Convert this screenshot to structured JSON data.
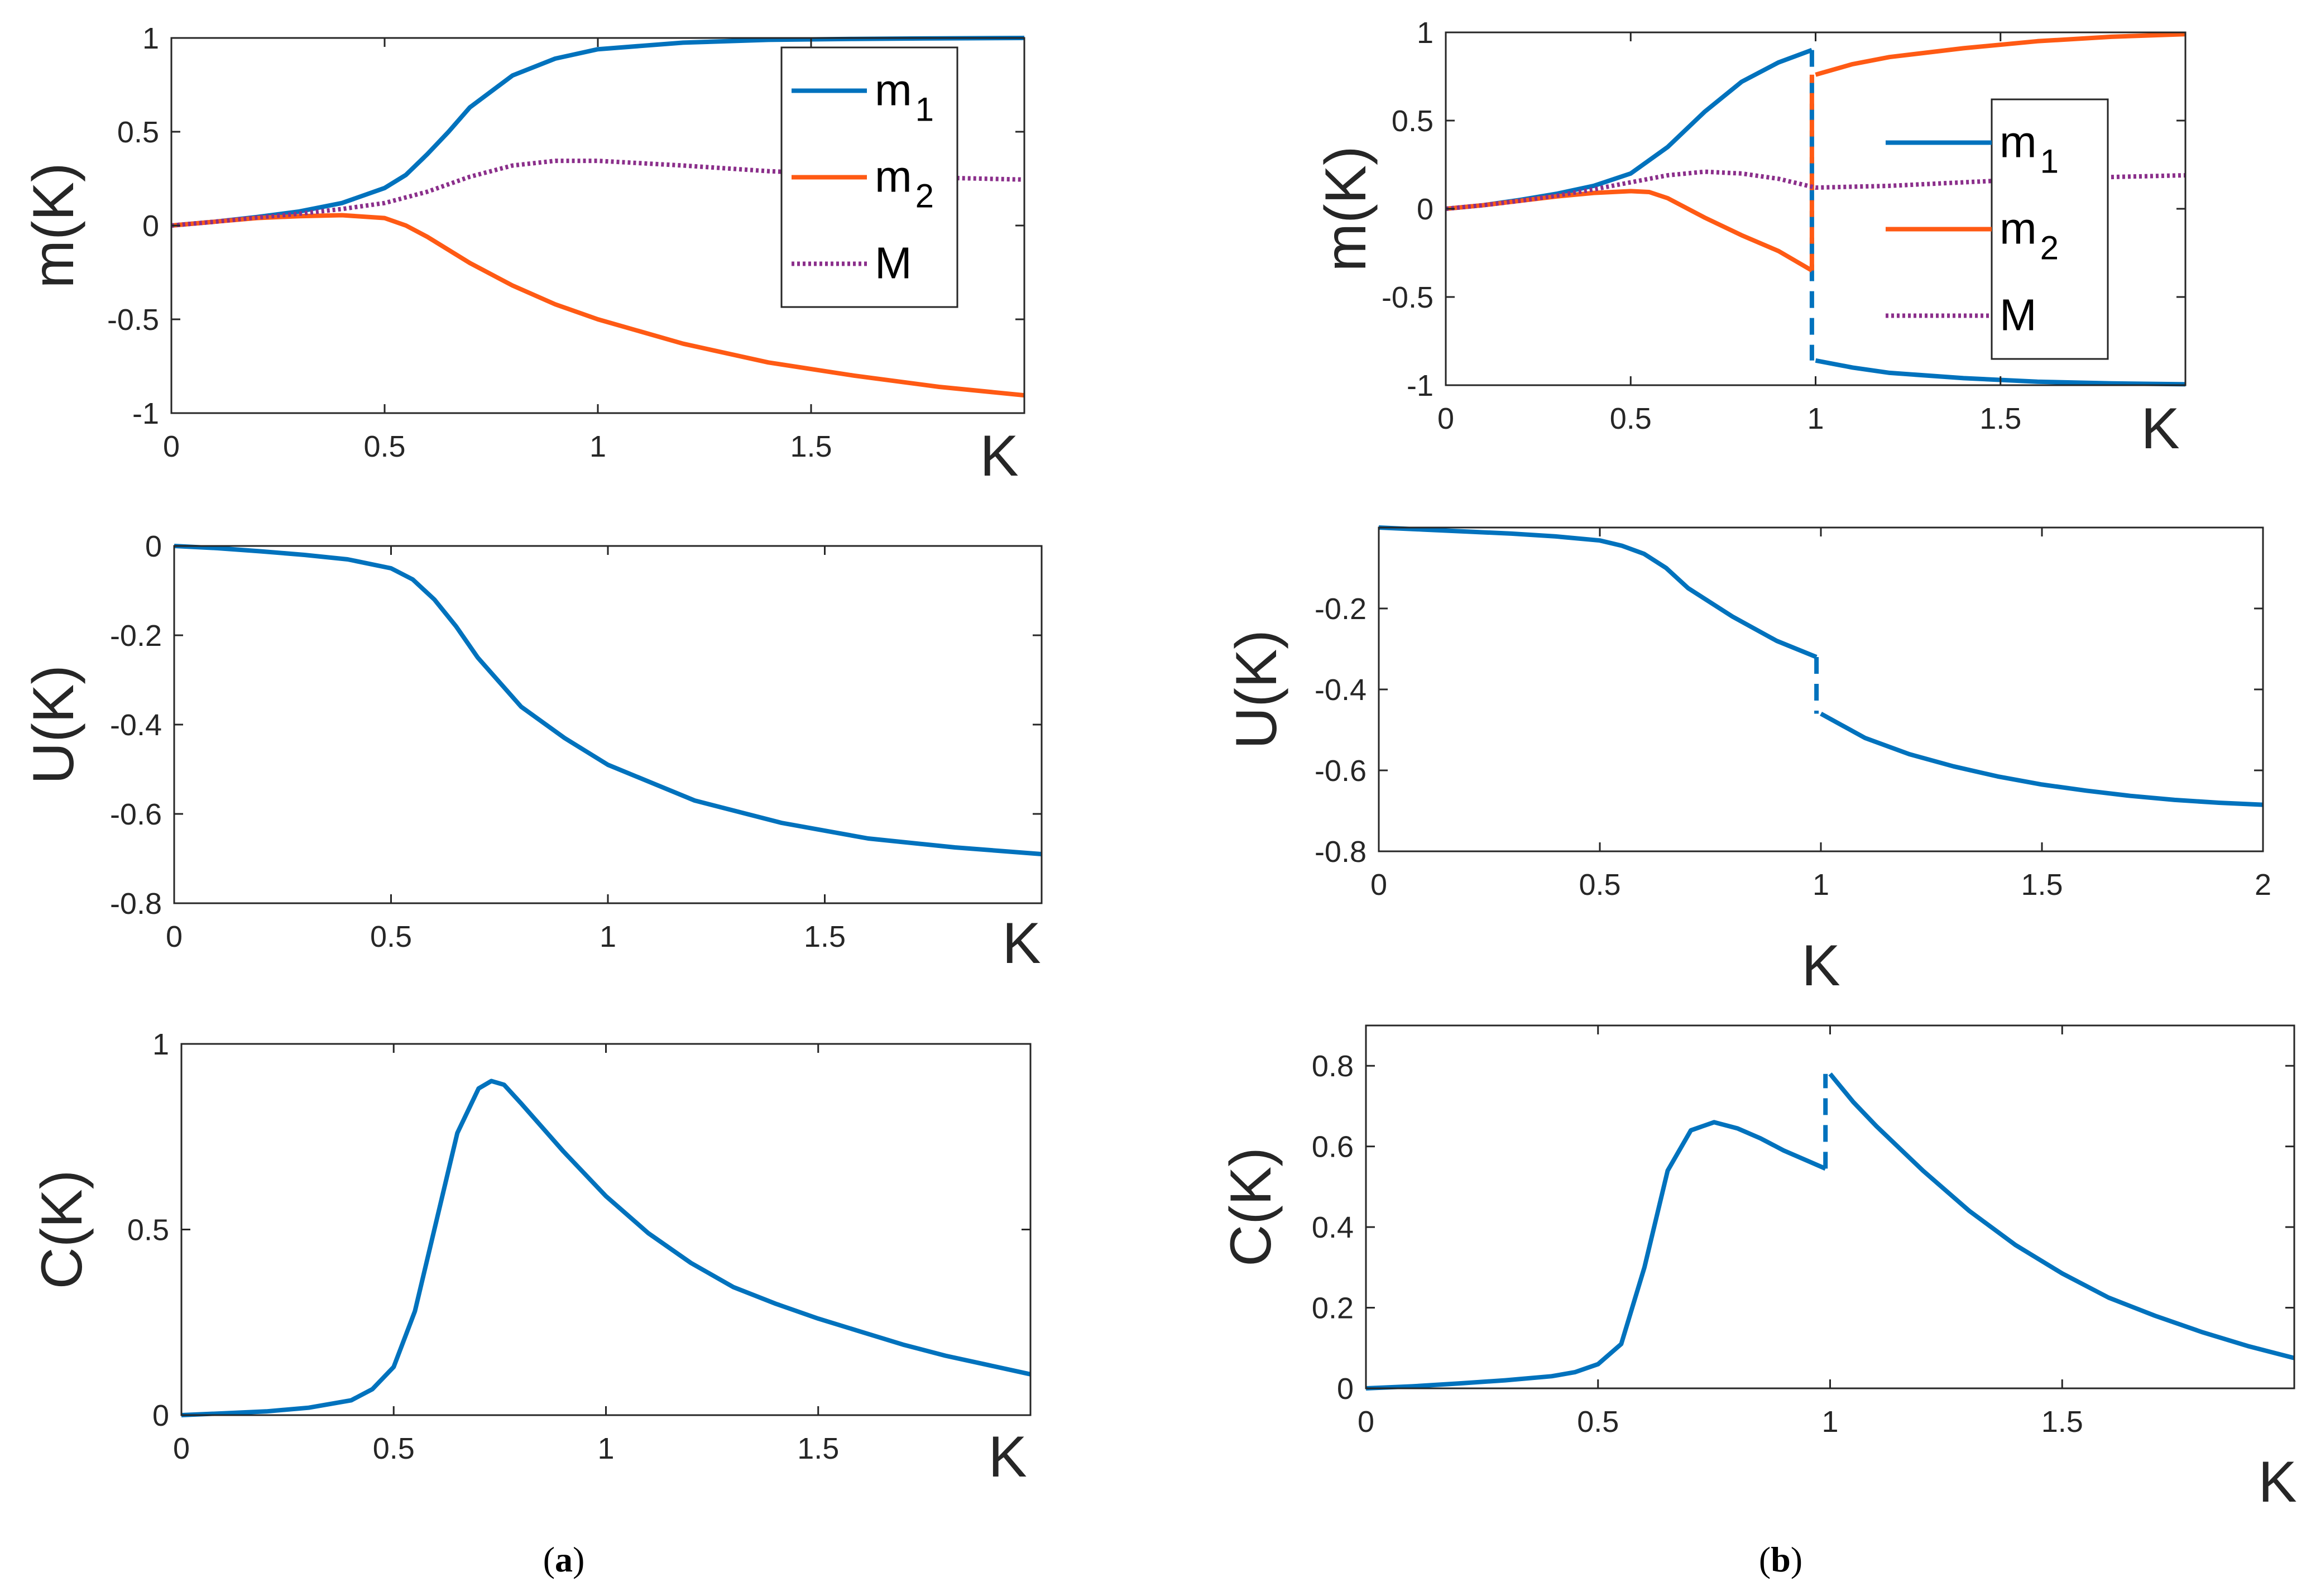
{
  "colors": {
    "blue": "#0072BD",
    "orange": "#FF5A14",
    "purple": "#8B2F8B",
    "axis": "#262626"
  },
  "captions": {
    "a_open": "(",
    "a_letter": "a",
    "a_close": ")",
    "b_open": "(",
    "b_letter": "b",
    "b_close": ")"
  },
  "chart_data": [
    {
      "id": "a_m",
      "type": "line",
      "panel": "(a)",
      "title": "",
      "xlabel": "K",
      "ylabel": "m(K)",
      "xlim": [
        0,
        2
      ],
      "ylim": [
        -1,
        1
      ],
      "xticks": [
        "0",
        "0.5",
        "1",
        "1.5"
      ],
      "xtick_values": [
        0,
        0.5,
        1,
        1.5
      ],
      "yticks": [
        "1",
        "0.5",
        "0",
        "-0.5",
        "-1"
      ],
      "ytick_values": [
        1,
        0.5,
        0,
        -0.5,
        -1
      ],
      "legend": {
        "position": "top-right",
        "entries": [
          {
            "base": "m",
            "sub": "1",
            "series": 0
          },
          {
            "base": "m",
            "sub": "2",
            "series": 1
          },
          {
            "base": "M",
            "sub": "",
            "series": 2
          }
        ]
      },
      "series": [
        {
          "name": "m1",
          "color": "blue",
          "style": "solid",
          "x": [
            0,
            0.1,
            0.2,
            0.3,
            0.4,
            0.5,
            0.55,
            0.6,
            0.65,
            0.7,
            0.8,
            0.9,
            1.0,
            1.2,
            1.4,
            1.6,
            1.8,
            2.0
          ],
          "y": [
            0,
            0.02,
            0.045,
            0.075,
            0.12,
            0.2,
            0.27,
            0.38,
            0.5,
            0.63,
            0.8,
            0.89,
            0.94,
            0.975,
            0.99,
            0.995,
            0.998,
            1.0
          ]
        },
        {
          "name": "m2",
          "color": "orange",
          "style": "solid",
          "x": [
            0,
            0.1,
            0.2,
            0.3,
            0.4,
            0.5,
            0.55,
            0.6,
            0.7,
            0.8,
            0.9,
            1.0,
            1.2,
            1.4,
            1.6,
            1.8,
            2.0
          ],
          "y": [
            0,
            0.02,
            0.04,
            0.05,
            0.055,
            0.04,
            0.0,
            -0.06,
            -0.2,
            -0.32,
            -0.42,
            -0.5,
            -0.63,
            -0.73,
            -0.8,
            -0.86,
            -0.905
          ]
        },
        {
          "name": "M",
          "color": "purple",
          "style": "dotted",
          "x": [
            0,
            0.1,
            0.2,
            0.3,
            0.4,
            0.5,
            0.6,
            0.7,
            0.8,
            0.9,
            1.0,
            1.2,
            1.4,
            1.6,
            1.8,
            2.0
          ],
          "y": [
            0,
            0.02,
            0.043,
            0.063,
            0.088,
            0.12,
            0.18,
            0.26,
            0.32,
            0.345,
            0.345,
            0.32,
            0.29,
            0.27,
            0.255,
            0.245
          ]
        }
      ]
    },
    {
      "id": "b_m",
      "type": "line",
      "panel": "(b)",
      "title": "",
      "xlabel": "K",
      "ylabel": "m(K)",
      "xlim": [
        0,
        2
      ],
      "ylim": [
        -1,
        1
      ],
      "xticks": [
        "0",
        "0.5",
        "1",
        "1.5"
      ],
      "xtick_values": [
        0,
        0.5,
        1,
        1.5
      ],
      "yticks": [
        "1",
        "0.5",
        "0",
        "-0.5",
        "-1"
      ],
      "ytick_values": [
        1,
        0.5,
        0,
        -0.5,
        -1
      ],
      "legend": {
        "position": "right",
        "entries": [
          {
            "base": "m",
            "sub": "1",
            "series": 0
          },
          {
            "base": "m",
            "sub": "2",
            "series": 1
          },
          {
            "base": "M",
            "sub": "",
            "series": 2
          }
        ]
      },
      "series": [
        {
          "name": "m1",
          "color": "blue",
          "style": "solid",
          "x": [
            0,
            0.1,
            0.2,
            0.3,
            0.4,
            0.5,
            0.6,
            0.7,
            0.8,
            0.9,
            0.99
          ],
          "y": [
            0,
            0.02,
            0.05,
            0.085,
            0.13,
            0.2,
            0.35,
            0.55,
            0.72,
            0.83,
            0.9
          ]
        },
        {
          "name": "m1",
          "color": "blue",
          "style": "solid",
          "x": [
            1.0,
            1.1,
            1.2,
            1.4,
            1.6,
            1.8,
            2.0
          ],
          "y": [
            -0.86,
            -0.9,
            -0.93,
            -0.96,
            -0.98,
            -0.99,
            -0.995
          ]
        },
        {
          "name": "m1_jump",
          "color": "blue",
          "style": "dashed",
          "x": [
            0.99,
            0.99
          ],
          "y": [
            0.9,
            -0.86
          ]
        },
        {
          "name": "m2",
          "color": "orange",
          "style": "solid",
          "x": [
            0,
            0.1,
            0.2,
            0.3,
            0.4,
            0.5,
            0.55,
            0.6,
            0.7,
            0.8,
            0.9,
            0.99
          ],
          "y": [
            0,
            0.02,
            0.045,
            0.07,
            0.09,
            0.1,
            0.095,
            0.06,
            -0.05,
            -0.15,
            -0.24,
            -0.35
          ]
        },
        {
          "name": "m2",
          "color": "orange",
          "style": "solid",
          "x": [
            1.0,
            1.1,
            1.2,
            1.4,
            1.6,
            1.8,
            2.0
          ],
          "y": [
            0.76,
            0.82,
            0.86,
            0.91,
            0.95,
            0.975,
            0.99
          ]
        },
        {
          "name": "m2_jump",
          "color": "orange",
          "style": "dashed",
          "x": [
            0.99,
            0.99
          ],
          "y": [
            -0.35,
            0.76
          ]
        },
        {
          "name": "M",
          "color": "purple",
          "style": "dotted",
          "x": [
            0,
            0.1,
            0.2,
            0.3,
            0.4,
            0.5,
            0.6,
            0.7,
            0.8,
            0.9,
            1.0,
            1.2,
            1.4,
            1.6,
            1.8,
            2.0
          ],
          "y": [
            0,
            0.02,
            0.045,
            0.075,
            0.11,
            0.15,
            0.19,
            0.21,
            0.2,
            0.17,
            0.12,
            0.13,
            0.15,
            0.17,
            0.18,
            0.19
          ]
        }
      ]
    },
    {
      "id": "a_U",
      "type": "line",
      "panel": "(a)",
      "title": "",
      "xlabel": "K",
      "ylabel": "U(K)",
      "xlim": [
        0,
        2
      ],
      "ylim": [
        -0.8,
        0
      ],
      "xticks": [
        "0",
        "0.5",
        "1",
        "1.5"
      ],
      "xtick_values": [
        0,
        0.5,
        1,
        1.5
      ],
      "yticks": [
        "0",
        "-0.2",
        "-0.4",
        "-0.6",
        "-0.8"
      ],
      "ytick_values": [
        0,
        -0.2,
        -0.4,
        -0.6,
        -0.8
      ],
      "series": [
        {
          "name": "U",
          "color": "blue",
          "style": "solid",
          "x": [
            0,
            0.1,
            0.2,
            0.3,
            0.4,
            0.5,
            0.55,
            0.6,
            0.65,
            0.7,
            0.8,
            0.9,
            1.0,
            1.2,
            1.4,
            1.6,
            1.8,
            2.0
          ],
          "y": [
            0,
            -0.005,
            -0.012,
            -0.02,
            -0.03,
            -0.05,
            -0.075,
            -0.12,
            -0.18,
            -0.25,
            -0.36,
            -0.43,
            -0.49,
            -0.57,
            -0.62,
            -0.655,
            -0.675,
            -0.69
          ]
        }
      ]
    },
    {
      "id": "b_U",
      "type": "line",
      "panel": "(b)",
      "title": "",
      "xlabel": "K",
      "ylabel": "U(K)",
      "xlim": [
        0,
        2
      ],
      "ylim": [
        -0.8,
        0
      ],
      "xticks": [
        "0",
        "0.5",
        "1",
        "1.5",
        "2"
      ],
      "xtick_values": [
        0,
        0.5,
        1,
        1.5,
        2
      ],
      "yticks": [
        "-0.2",
        "-0.4",
        "-0.6",
        "-0.8"
      ],
      "ytick_values": [
        -0.2,
        -0.4,
        -0.6,
        -0.8
      ],
      "series": [
        {
          "name": "U",
          "color": "blue",
          "style": "solid",
          "x": [
            0,
            0.1,
            0.2,
            0.3,
            0.4,
            0.5,
            0.55,
            0.6,
            0.65,
            0.7,
            0.8,
            0.9,
            0.99
          ],
          "y": [
            0,
            -0.005,
            -0.01,
            -0.015,
            -0.022,
            -0.032,
            -0.045,
            -0.065,
            -0.1,
            -0.15,
            -0.22,
            -0.28,
            -0.32
          ]
        },
        {
          "name": "U",
          "color": "blue",
          "style": "solid",
          "x": [
            1.0,
            1.1,
            1.2,
            1.3,
            1.4,
            1.5,
            1.6,
            1.7,
            1.8,
            1.9,
            2.0
          ],
          "y": [
            -0.46,
            -0.52,
            -0.56,
            -0.59,
            -0.615,
            -0.635,
            -0.65,
            -0.663,
            -0.673,
            -0.68,
            -0.685
          ]
        },
        {
          "name": "U_jump",
          "color": "blue",
          "style": "dashed",
          "x": [
            0.99,
            0.99
          ],
          "y": [
            -0.32,
            -0.46
          ]
        }
      ]
    },
    {
      "id": "a_C",
      "type": "line",
      "panel": "(a)",
      "title": "",
      "xlabel": "K",
      "ylabel": "C(K)",
      "xlim": [
        0,
        2
      ],
      "ylim": [
        0,
        1
      ],
      "xticks": [
        "0",
        "0.5",
        "1",
        "1.5"
      ],
      "xtick_values": [
        0,
        0.5,
        1,
        1.5
      ],
      "yticks": [
        "1",
        "0.5",
        "0"
      ],
      "ytick_values": [
        1,
        0.5,
        0
      ],
      "series": [
        {
          "name": "C",
          "color": "blue",
          "style": "solid",
          "x": [
            0,
            0.1,
            0.2,
            0.3,
            0.4,
            0.45,
            0.5,
            0.55,
            0.6,
            0.65,
            0.7,
            0.73,
            0.76,
            0.8,
            0.9,
            1.0,
            1.1,
            1.2,
            1.3,
            1.4,
            1.5,
            1.6,
            1.7,
            1.8,
            1.9,
            2.0
          ],
          "y": [
            0,
            0.005,
            0.01,
            0.02,
            0.04,
            0.07,
            0.13,
            0.28,
            0.52,
            0.76,
            0.88,
            0.9,
            0.89,
            0.84,
            0.71,
            0.59,
            0.49,
            0.41,
            0.345,
            0.3,
            0.26,
            0.225,
            0.19,
            0.16,
            0.135,
            0.11
          ]
        }
      ]
    },
    {
      "id": "b_C",
      "type": "line",
      "panel": "(b)",
      "title": "",
      "xlabel": "K",
      "ylabel": "C(K)",
      "xlim": [
        0,
        2
      ],
      "ylim": [
        0,
        0.9
      ],
      "xticks": [
        "0",
        "0.5",
        "1",
        "1.5"
      ],
      "xtick_values": [
        0,
        0.5,
        1,
        1.5
      ],
      "yticks": [
        "0.8",
        "0.6",
        "0.4",
        "0.2",
        "0"
      ],
      "ytick_values": [
        0.8,
        0.6,
        0.4,
        0.2,
        0
      ],
      "series": [
        {
          "name": "C",
          "color": "blue",
          "style": "solid",
          "x": [
            0,
            0.1,
            0.2,
            0.3,
            0.4,
            0.45,
            0.5,
            0.55,
            0.6,
            0.65,
            0.7,
            0.75,
            0.8,
            0.85,
            0.9,
            0.95,
            0.99
          ],
          "y": [
            0,
            0.005,
            0.012,
            0.02,
            0.03,
            0.04,
            0.06,
            0.11,
            0.3,
            0.54,
            0.64,
            0.66,
            0.645,
            0.62,
            0.59,
            0.565,
            0.545
          ]
        },
        {
          "name": "C",
          "color": "blue",
          "style": "solid",
          "x": [
            1.0,
            1.05,
            1.1,
            1.2,
            1.3,
            1.4,
            1.5,
            1.6,
            1.7,
            1.8,
            1.9,
            2.0
          ],
          "y": [
            0.78,
            0.71,
            0.65,
            0.54,
            0.44,
            0.355,
            0.285,
            0.225,
            0.18,
            0.14,
            0.105,
            0.075
          ]
        },
        {
          "name": "C_jump",
          "color": "blue",
          "style": "dashed",
          "x": [
            0.99,
            0.99
          ],
          "y": [
            0.545,
            0.78
          ]
        }
      ]
    }
  ]
}
